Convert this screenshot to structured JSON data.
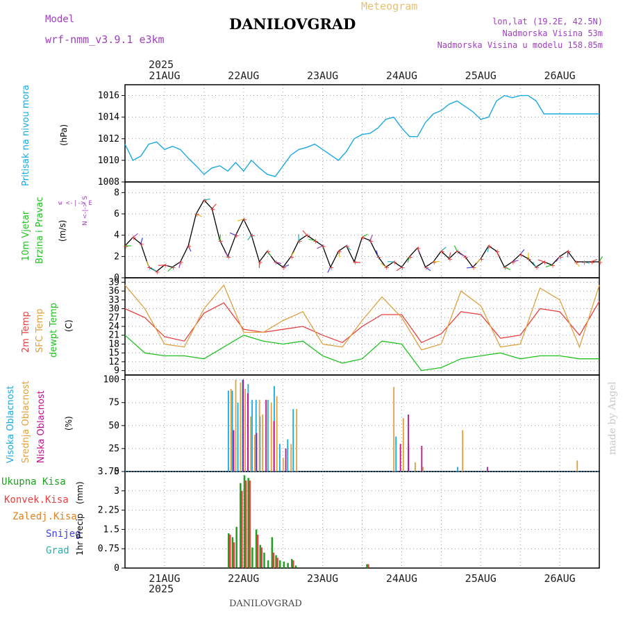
{
  "header": {
    "model_label": "Model",
    "model_name": "wrf-nmm_v3.9.1 e3km",
    "product": "Meteogram",
    "station": "DANILOVGRAD",
    "coords": "lon,lat (19.2E, 42.5N)",
    "elevation": "Nadmorska Visina 53m",
    "model_elevation": "Nadmorska Visina u modelu 158.85m",
    "year": "2025",
    "footer_station": "DANILOVGRAD",
    "watermark": "made by Angel"
  },
  "colors": {
    "pressure": "#1ba8e0",
    "temp": "#e84040",
    "sfc": "#e0a040",
    "dew": "#20c020",
    "high_cloud": "#1ba8e0",
    "mid_cloud": "#e0a040",
    "low_cloud": "#c0108a",
    "total_precip": "#20a020",
    "conv_precip": "#e84040",
    "frozen": "#e08020",
    "snow": "#4040e0",
    "grad": "#20b0b0",
    "title_purple": "#a040c0",
    "meteogram_orange": "#e8c070"
  },
  "chart_data": [
    {
      "type": "line",
      "panel": "pressure",
      "ylabel_name": "Pritisak na nivou mora",
      "ylabel_unit": "(hPa)",
      "ylim": [
        1008,
        1017
      ],
      "yticks": [
        1008,
        1010,
        1012,
        1014,
        1016
      ],
      "x_days": [
        "21AUG",
        "22AUG",
        "23AUG",
        "24AUG",
        "25AUG",
        "26AUG"
      ],
      "x_day_pos": [
        0.5,
        1.5,
        2.5,
        3.5,
        4.5,
        5.5
      ],
      "x_range": [
        0,
        6
      ],
      "series": [
        {
          "name": "Pritisak",
          "x": [
            0,
            0.1,
            0.2,
            0.3,
            0.4,
            0.5,
            0.6,
            0.7,
            0.8,
            0.9,
            1.0,
            1.1,
            1.2,
            1.3,
            1.4,
            1.5,
            1.6,
            1.7,
            1.8,
            1.9,
            2.0,
            2.1,
            2.2,
            2.3,
            2.4,
            2.5,
            2.6,
            2.7,
            2.8,
            2.9,
            3.0,
            3.1,
            3.2,
            3.3,
            3.4,
            3.5,
            3.6,
            3.7,
            3.8,
            3.9,
            4.0,
            4.1,
            4.2,
            4.3,
            4.4,
            4.5,
            4.6,
            4.7,
            4.8,
            4.9,
            5.0,
            5.1,
            5.2,
            5.3,
            5.4,
            5.5,
            5.6,
            5.7,
            5.8,
            5.9,
            6.0
          ],
          "values": [
            1011.5,
            1010.0,
            1010.4,
            1011.5,
            1011.7,
            1011.0,
            1011.3,
            1011.0,
            1010.2,
            1009.5,
            1008.7,
            1009.3,
            1009.5,
            1009.0,
            1009.8,
            1009.0,
            1010.0,
            1009.3,
            1008.7,
            1008.5,
            1009.5,
            1010.5,
            1011.0,
            1011.2,
            1011.5,
            1011.0,
            1010.5,
            1010.0,
            1010.8,
            1012.0,
            1012.4,
            1012.5,
            1013.0,
            1013.8,
            1014.0,
            1013.0,
            1012.2,
            1012.2,
            1013.5,
            1014.3,
            1014.6,
            1015.2,
            1015.5,
            1015.0,
            1014.5,
            1013.8,
            1014.0,
            1015.5,
            1016.0,
            1015.8,
            1016.0,
            1016.0,
            1015.5,
            1014.3,
            1014.3,
            1014.3,
            1014.3,
            1014.3,
            1014.3,
            1014.3,
            1014.3
          ]
        }
      ]
    },
    {
      "type": "line",
      "panel": "wind",
      "ylabel_name": "10m Vjetar",
      "ylabel_name2": "Brzina i Pravac",
      "ylabel_unit": "(m/s)",
      "compass": "w <-|-> E",
      "compass2": "N <-|-> S",
      "ylim": [
        0,
        9
      ],
      "yticks": [
        0,
        2,
        4,
        6,
        8
      ],
      "series": [
        {
          "name": "Brzina",
          "x": [
            0,
            0.1,
            0.2,
            0.3,
            0.4,
            0.5,
            0.6,
            0.7,
            0.8,
            0.9,
            1.0,
            1.1,
            1.2,
            1.3,
            1.4,
            1.5,
            1.6,
            1.7,
            1.8,
            1.9,
            2.0,
            2.1,
            2.2,
            2.3,
            2.4,
            2.5,
            2.6,
            2.7,
            2.8,
            2.9,
            3.0,
            3.1,
            3.2,
            3.3,
            3.4,
            3.5,
            3.6,
            3.7,
            3.8,
            3.9,
            4.0,
            4.1,
            4.2,
            4.3,
            4.4,
            4.5,
            4.6,
            4.7,
            4.8,
            4.9,
            5.0,
            5.1,
            5.2,
            5.3,
            5.4,
            5.5,
            5.6,
            5.7,
            5.8,
            5.9,
            6.0
          ],
          "values": [
            3.0,
            3.8,
            3.2,
            1.0,
            0.6,
            1.2,
            1.0,
            1.5,
            3.0,
            6.0,
            7.3,
            6.5,
            3.5,
            2.0,
            4.0,
            5.5,
            4.0,
            1.5,
            2.5,
            1.5,
            1.0,
            2.0,
            3.5,
            4.0,
            3.5,
            3.0,
            1.0,
            2.5,
            3.0,
            1.5,
            3.8,
            3.5,
            2.0,
            1.0,
            1.5,
            1.0,
            2.0,
            2.8,
            1.0,
            1.5,
            2.5,
            1.8,
            2.5,
            2.0,
            1.0,
            1.8,
            3.0,
            2.5,
            1.0,
            1.5,
            2.2,
            1.8,
            1.0,
            1.5,
            1.2,
            2.0,
            2.5,
            1.5,
            1.5,
            1.5,
            1.5
          ]
        }
      ]
    },
    {
      "type": "line",
      "panel": "temperature",
      "ylabel_name": "2m Temp",
      "ylabel_name2": "SFC Temp",
      "ylabel_name3": "dewpt Temp",
      "ylabel_unit": "(C)",
      "ylim": [
        7.5,
        40.5
      ],
      "yticks": [
        9,
        12,
        15,
        18,
        21,
        24,
        27,
        30,
        33,
        36,
        39
      ],
      "series": [
        {
          "name": "2m Temp",
          "x": [
            0,
            0.25,
            0.5,
            0.75,
            1.0,
            1.25,
            1.5,
            1.75,
            2.0,
            2.25,
            2.5,
            2.75,
            3.0,
            3.25,
            3.5,
            3.75,
            4.0,
            4.25,
            4.5,
            4.75,
            5.0,
            5.25,
            5.5,
            5.75,
            6.0
          ],
          "values": [
            30,
            27,
            20.5,
            19,
            28.5,
            32,
            23,
            22,
            23,
            24,
            21,
            18.5,
            24,
            28,
            28,
            18.5,
            21.5,
            29,
            28,
            20,
            21,
            30,
            29,
            21,
            32.5
          ]
        },
        {
          "name": "SFC Temp",
          "x": [
            0,
            0.25,
            0.5,
            0.75,
            1.0,
            1.25,
            1.5,
            1.75,
            2.0,
            2.25,
            2.5,
            2.75,
            3.0,
            3.25,
            3.5,
            3.75,
            4.0,
            4.25,
            4.5,
            4.75,
            5.0,
            5.25,
            5.5,
            5.75,
            6.0
          ],
          "values": [
            38,
            30,
            18,
            17,
            30,
            38,
            22,
            22,
            26,
            29,
            18,
            17,
            26,
            34,
            27,
            16,
            18,
            36,
            31,
            17,
            18,
            37,
            33,
            17,
            38
          ]
        },
        {
          "name": "dewpt Temp",
          "x": [
            0,
            0.25,
            0.5,
            0.75,
            1.0,
            1.25,
            1.5,
            1.75,
            2.0,
            2.25,
            2.5,
            2.75,
            3.0,
            3.25,
            3.5,
            3.75,
            4.0,
            4.25,
            4.5,
            4.75,
            5.0,
            5.25,
            5.5,
            5.75,
            6.0
          ],
          "values": [
            21,
            15,
            14,
            14,
            13,
            17,
            21,
            19,
            18,
            19,
            14,
            11.5,
            13,
            19,
            18,
            9,
            10,
            13,
            14,
            15,
            13,
            14,
            14,
            13,
            13
          ]
        }
      ]
    },
    {
      "type": "bar",
      "panel": "clouds",
      "ylabel_name": "Visoka Oblacnost",
      "ylabel_name2": "Srednja Oblacnost",
      "ylabel_name3": "Niska Oblacnost",
      "ylabel_unit": "(%)",
      "ylim": [
        0,
        105
      ],
      "yticks": [
        0,
        25,
        50,
        75,
        100
      ],
      "series": [
        {
          "name": "Visoka",
          "x": [
            1.3,
            1.35,
            1.42,
            1.48,
            1.55,
            1.6,
            1.65,
            1.7,
            1.8,
            1.88,
            1.95,
            2.05,
            2.12,
            3.42,
            3.58,
            4.2
          ],
          "values": [
            88,
            88,
            75,
            100,
            95,
            78,
            78,
            60,
            78,
            93,
            30,
            35,
            68,
            38,
            30,
            5
          ]
        },
        {
          "name": "Srednja",
          "x": [
            1.32,
            1.38,
            1.44,
            1.5,
            1.57,
            1.62,
            1.68,
            1.72,
            1.83,
            1.9,
            1.98,
            2.08,
            2.15,
            3.38,
            3.5,
            3.65,
            3.75,
            4.25,
            5.7
          ],
          "values": [
            90,
            100,
            97,
            90,
            60,
            40,
            78,
            62,
            75,
            82,
            15,
            30,
            68,
            92,
            58,
            10,
            5,
            45,
            12
          ]
        },
        {
          "name": "Niska",
          "x": [
            1.34,
            1.46,
            1.52,
            1.63,
            1.75,
            1.85,
            2.0,
            3.45,
            3.55,
            3.72,
            4.55
          ],
          "values": [
            45,
            100,
            85,
            42,
            78,
            55,
            25,
            30,
            62,
            28,
            5
          ]
        }
      ]
    },
    {
      "type": "bar",
      "panel": "precip",
      "ylabel_name": "1hr Precip",
      "ylabel_unit": "(mm)",
      "ylim": [
        0,
        3.75
      ],
      "yticks": [
        0,
        0.75,
        1.5,
        2.25,
        3,
        3.75
      ],
      "series": [
        {
          "name": "Ukupna Kisa",
          "x": [
            1.3,
            1.35,
            1.4,
            1.45,
            1.5,
            1.55,
            1.6,
            1.65,
            1.7,
            1.75,
            1.8,
            1.85,
            1.9,
            1.95,
            2.0,
            2.05,
            2.1,
            2.15,
            3.05
          ],
          "values": [
            1.35,
            1.2,
            1.6,
            3.3,
            3.6,
            3.5,
            0.8,
            1.5,
            0.9,
            0.6,
            0.3,
            1.2,
            0.5,
            0.3,
            0.25,
            0.2,
            0.35,
            0.1,
            0.15
          ]
        },
        {
          "name": "Konvek.Kisa",
          "x": [
            1.3,
            1.35,
            1.45,
            1.5,
            1.55,
            1.65,
            1.7,
            1.85,
            1.9,
            2.1,
            3.05
          ],
          "values": [
            1.3,
            1.0,
            3.0,
            3.4,
            3.4,
            1.3,
            0.8,
            0.6,
            0.4,
            0.3,
            0.15
          ]
        },
        {
          "name": "Zaledj.Kisa",
          "x": [],
          "values": []
        },
        {
          "name": "Snijeg",
          "x": [],
          "values": []
        },
        {
          "name": "Grad",
          "x": [],
          "values": []
        }
      ]
    }
  ]
}
